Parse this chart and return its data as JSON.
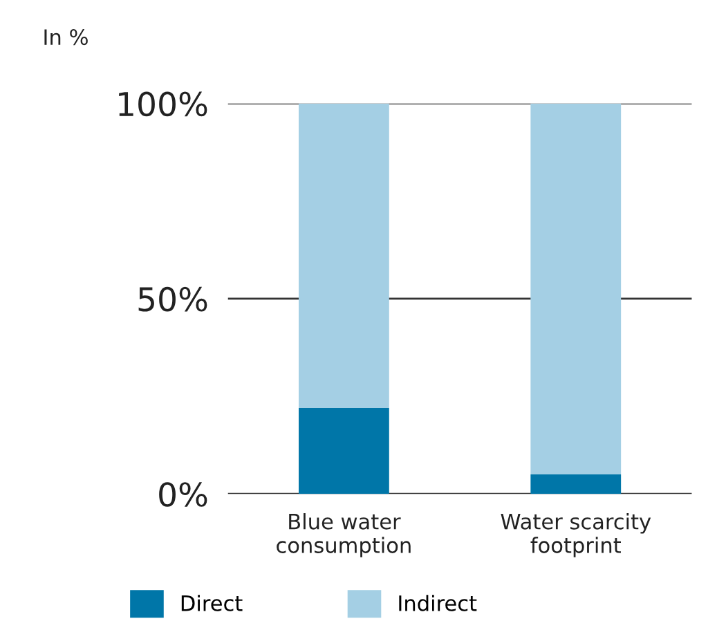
{
  "chart_data": {
    "type": "bar",
    "stacked": true,
    "ylabel": "In %",
    "categories": [
      "Blue water\nconsumption",
      "Water scarcity\nfootprint"
    ],
    "series": [
      {
        "name": "Direct",
        "color": "#0076a8",
        "values": [
          22,
          5
        ]
      },
      {
        "name": "Indirect",
        "color": "#a4cfe4",
        "values": [
          78,
          95
        ]
      }
    ],
    "ylim": [
      0,
      100
    ],
    "yticks": [
      {
        "value": 0,
        "label": "0%"
      },
      {
        "value": 50,
        "label": "50%"
      },
      {
        "value": 100,
        "label": "100%"
      }
    ],
    "grid": "y",
    "legend": "bottom"
  }
}
